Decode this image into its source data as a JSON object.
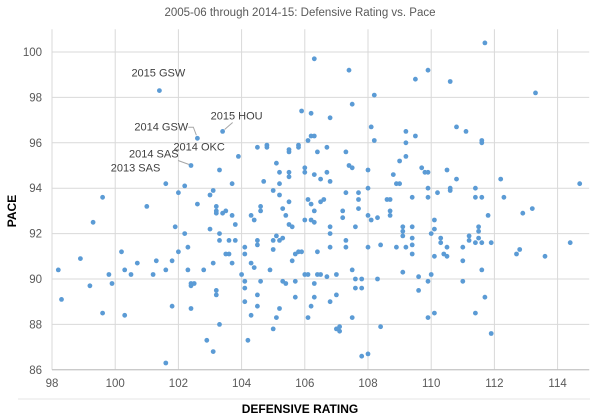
{
  "chart_data": {
    "type": "scatter",
    "title": "2005-06 through 2014-15: Defensive Rating vs. Pace",
    "xlabel": "DEFENSIVE RATING",
    "ylabel": "PACE",
    "xlim": [
      98,
      115
    ],
    "ylim": [
      86,
      101
    ],
    "xticks": [
      98,
      100,
      102,
      104,
      106,
      108,
      110,
      112,
      114
    ],
    "yticks": [
      86,
      88,
      90,
      92,
      94,
      96,
      98,
      100
    ],
    "grid": true,
    "legend": null,
    "point_color": "#5b9bd5",
    "annotations": [
      {
        "label": "2015 GSW",
        "x": 101.4,
        "y": 98.3
      },
      {
        "label": "2014 GSW",
        "x": 102.6,
        "y": 96.2
      },
      {
        "label": "2015 HOU",
        "x": 103.4,
        "y": 96.5
      },
      {
        "label": "2014 OKC",
        "x": 103.9,
        "y": 95.4
      },
      {
        "label": "2014 SAS",
        "x": 102.4,
        "y": 95.0
      },
      {
        "label": "2013 SAS",
        "x": 101.6,
        "y": 94.2
      }
    ],
    "points": [
      [
        98.2,
        90.4
      ],
      [
        98.3,
        89.1
      ],
      [
        98.9,
        90.9
      ],
      [
        99.2,
        89.7
      ],
      [
        99.3,
        92.5
      ],
      [
        99.6,
        93.6
      ],
      [
        99.6,
        88.5
      ],
      [
        99.8,
        90.2
      ],
      [
        99.9,
        89.8
      ],
      [
        100.2,
        91.2
      ],
      [
        100.3,
        90.4
      ],
      [
        100.3,
        88.4
      ],
      [
        100.5,
        90.2
      ],
      [
        100.7,
        90.7
      ],
      [
        101.0,
        93.2
      ],
      [
        101.2,
        90.2
      ],
      [
        101.3,
        90.8
      ],
      [
        101.4,
        98.3
      ],
      [
        101.6,
        94.2
      ],
      [
        101.6,
        90.4
      ],
      [
        101.6,
        86.3
      ],
      [
        101.8,
        90.8
      ],
      [
        101.8,
        88.8
      ],
      [
        101.9,
        92.3
      ],
      [
        102.0,
        93.8
      ],
      [
        102.0,
        91.2
      ],
      [
        102.2,
        94.1
      ],
      [
        102.2,
        92.0
      ],
      [
        102.3,
        91.4
      ],
      [
        102.3,
        90.4
      ],
      [
        102.4,
        95.0
      ],
      [
        102.4,
        89.8
      ],
      [
        102.4,
        89.7
      ],
      [
        102.5,
        89.8
      ],
      [
        102.4,
        88.7
      ],
      [
        102.6,
        96.2
      ],
      [
        102.6,
        93.3
      ],
      [
        102.8,
        90.4
      ],
      [
        102.9,
        87.3
      ],
      [
        103.0,
        93.7
      ],
      [
        103.1,
        93.9
      ],
      [
        103.0,
        92.2
      ],
      [
        103.1,
        90.7
      ],
      [
        103.1,
        86.8
      ],
      [
        103.2,
        93.2
      ],
      [
        103.2,
        93.0
      ],
      [
        103.2,
        92.9
      ],
      [
        103.2,
        89.5
      ],
      [
        103.2,
        89.3
      ],
      [
        103.3,
        92.0
      ],
      [
        103.3,
        91.7
      ],
      [
        103.3,
        88.0
      ],
      [
        103.3,
        94.8
      ],
      [
        103.4,
        96.5
      ],
      [
        103.4,
        92.9
      ],
      [
        103.5,
        93.0
      ],
      [
        103.5,
        91.1
      ],
      [
        103.6,
        91.1
      ],
      [
        103.6,
        91.7
      ],
      [
        103.7,
        94.2
      ],
      [
        103.7,
        92.8
      ],
      [
        103.7,
        90.7
      ],
      [
        103.8,
        92.4
      ],
      [
        103.8,
        91.7
      ],
      [
        103.9,
        95.4
      ],
      [
        104.0,
        90.2
      ],
      [
        104.1,
        91.4
      ],
      [
        104.1,
        91.1
      ],
      [
        104.1,
        89.9
      ],
      [
        104.1,
        89.6
      ],
      [
        104.1,
        89.0
      ],
      [
        104.2,
        87.3
      ],
      [
        104.3,
        92.8
      ],
      [
        104.3,
        90.7
      ],
      [
        104.3,
        88.4
      ],
      [
        104.4,
        92.6
      ],
      [
        104.4,
        90.5
      ],
      [
        104.5,
        95.8
      ],
      [
        104.5,
        91.7
      ],
      [
        104.5,
        91.5
      ],
      [
        104.5,
        89.3
      ],
      [
        104.5,
        88.8
      ],
      [
        104.6,
        93.2
      ],
      [
        104.6,
        93.0
      ],
      [
        104.6,
        89.9
      ],
      [
        104.7,
        94.3
      ],
      [
        104.8,
        95.9
      ],
      [
        104.8,
        95.8
      ],
      [
        104.9,
        90.4
      ],
      [
        105.0,
        93.9
      ],
      [
        105.0,
        91.7
      ],
      [
        105.0,
        91.3
      ],
      [
        105.0,
        87.8
      ],
      [
        105.1,
        95.1
      ],
      [
        105.1,
        91.9
      ],
      [
        105.1,
        88.3
      ],
      [
        105.2,
        94.7
      ],
      [
        105.2,
        94.2
      ],
      [
        105.2,
        93.7
      ],
      [
        105.2,
        91.7
      ],
      [
        105.2,
        88.7
      ],
      [
        105.3,
        93.1
      ],
      [
        105.3,
        91.8
      ],
      [
        105.3,
        89.9
      ],
      [
        105.4,
        92.8
      ],
      [
        105.4,
        89.8
      ],
      [
        105.5,
        95.7
      ],
      [
        105.5,
        95.6
      ],
      [
        105.5,
        94.7
      ],
      [
        105.5,
        94.5
      ],
      [
        105.5,
        93.4
      ],
      [
        105.5,
        92.4
      ],
      [
        105.6,
        92.3
      ],
      [
        105.6,
        90.8
      ],
      [
        105.7,
        91.1
      ],
      [
        105.7,
        89.9
      ],
      [
        105.7,
        89.2
      ],
      [
        105.8,
        95.9
      ],
      [
        105.8,
        95.8
      ],
      [
        105.8,
        91.2
      ],
      [
        105.9,
        97.4
      ],
      [
        105.9,
        91.2
      ],
      [
        106.0,
        94.9
      ],
      [
        106.0,
        94.7
      ],
      [
        106.0,
        92.6
      ],
      [
        106.0,
        90.2
      ],
      [
        106.1,
        96.1
      ],
      [
        106.1,
        93.5
      ],
      [
        106.1,
        90.2
      ],
      [
        106.1,
        88.3
      ],
      [
        106.2,
        97.3
      ],
      [
        106.2,
        96.3
      ],
      [
        106.2,
        93.3
      ],
      [
        106.2,
        92.6
      ],
      [
        106.2,
        88.8
      ],
      [
        106.3,
        99.7
      ],
      [
        106.3,
        96.3
      ],
      [
        106.3,
        94.6
      ],
      [
        106.3,
        93.0
      ],
      [
        106.3,
        92.5
      ],
      [
        106.3,
        89.8
      ],
      [
        106.3,
        89.2
      ],
      [
        106.4,
        95.6
      ],
      [
        106.4,
        91.2
      ],
      [
        106.4,
        90.2
      ],
      [
        106.5,
        94.4
      ],
      [
        106.5,
        93.4
      ],
      [
        106.5,
        90.2
      ],
      [
        106.6,
        93.5
      ],
      [
        106.7,
        95.8
      ],
      [
        106.7,
        94.7
      ],
      [
        106.7,
        90.1
      ],
      [
        106.8,
        97.1
      ],
      [
        106.8,
        94.3
      ],
      [
        106.8,
        92.3
      ],
      [
        106.8,
        92.0
      ],
      [
        106.8,
        91.4
      ],
      [
        106.8,
        89.0
      ],
      [
        107.0,
        90.2
      ],
      [
        107.0,
        89.3
      ],
      [
        107.0,
        87.8
      ],
      [
        107.1,
        87.7
      ],
      [
        107.1,
        87.9
      ],
      [
        107.2,
        93.0
      ],
      [
        107.2,
        92.7
      ],
      [
        107.3,
        95.6
      ],
      [
        107.3,
        93.8
      ],
      [
        107.3,
        91.7
      ],
      [
        107.3,
        91.4
      ],
      [
        107.4,
        99.2
      ],
      [
        107.4,
        95.0
      ],
      [
        107.5,
        97.7
      ],
      [
        107.5,
        94.9
      ],
      [
        107.5,
        90.4
      ],
      [
        107.5,
        88.3
      ],
      [
        107.6,
        92.3
      ],
      [
        107.6,
        90.0
      ],
      [
        107.6,
        89.6
      ],
      [
        107.7,
        93.8
      ],
      [
        107.7,
        93.5
      ],
      [
        107.7,
        93.1
      ],
      [
        107.8,
        90.0
      ],
      [
        107.8,
        89.6
      ],
      [
        107.8,
        86.6
      ],
      [
        108.0,
        94.8
      ],
      [
        108.0,
        94.0
      ],
      [
        108.0,
        92.8
      ],
      [
        108.0,
        91.4
      ],
      [
        108.0,
        86.7
      ],
      [
        108.1,
        96.7
      ],
      [
        108.1,
        92.6
      ],
      [
        108.2,
        98.1
      ],
      [
        108.2,
        96.1
      ],
      [
        108.3,
        92.7
      ],
      [
        108.3,
        90.0
      ],
      [
        108.4,
        91.5
      ],
      [
        108.4,
        87.9
      ],
      [
        108.6,
        93.5
      ],
      [
        108.7,
        93.5
      ],
      [
        108.7,
        93.0
      ],
      [
        108.7,
        92.8
      ],
      [
        108.8,
        94.6
      ],
      [
        108.9,
        94.2
      ],
      [
        108.9,
        91.4
      ],
      [
        109.0,
        95.2
      ],
      [
        109.0,
        94.2
      ],
      [
        109.1,
        92.3
      ],
      [
        109.1,
        92.1
      ],
      [
        109.1,
        91.9
      ],
      [
        109.1,
        90.3
      ],
      [
        109.2,
        96.5
      ],
      [
        109.2,
        96.0
      ],
      [
        109.2,
        95.4
      ],
      [
        109.2,
        91.4
      ],
      [
        109.4,
        93.6
      ],
      [
        109.4,
        92.3
      ],
      [
        109.4,
        91.8
      ],
      [
        109.4,
        91.5
      ],
      [
        109.4,
        91.1
      ],
      [
        109.5,
        98.8
      ],
      [
        109.5,
        96.3
      ],
      [
        109.6,
        90.1
      ],
      [
        109.6,
        89.5
      ],
      [
        109.7,
        94.9
      ],
      [
        109.8,
        94.7
      ],
      [
        109.9,
        99.2
      ],
      [
        109.9,
        94.7
      ],
      [
        109.9,
        94.0
      ],
      [
        109.9,
        93.6
      ],
      [
        109.9,
        89.9
      ],
      [
        109.9,
        88.3
      ],
      [
        110.0,
        92.0
      ],
      [
        110.0,
        90.2
      ],
      [
        110.1,
        92.6
      ],
      [
        110.1,
        92.2
      ],
      [
        110.1,
        91.0
      ],
      [
        110.1,
        88.5
      ],
      [
        110.2,
        93.8
      ],
      [
        110.3,
        91.8
      ],
      [
        110.3,
        91.6
      ],
      [
        110.4,
        91.1
      ],
      [
        110.5,
        94.8
      ],
      [
        110.5,
        91.4
      ],
      [
        110.5,
        91.0
      ],
      [
        110.6,
        98.7
      ],
      [
        110.6,
        94.0
      ],
      [
        110.6,
        93.9
      ],
      [
        110.8,
        96.7
      ],
      [
        110.8,
        94.4
      ],
      [
        111.0,
        91.4
      ],
      [
        111.0,
        90.8
      ],
      [
        111.0,
        89.9
      ],
      [
        111.1,
        96.5
      ],
      [
        111.2,
        91.9
      ],
      [
        111.2,
        91.7
      ],
      [
        111.4,
        94.0
      ],
      [
        111.4,
        93.6
      ],
      [
        111.4,
        91.6
      ],
      [
        111.4,
        88.5
      ],
      [
        111.5,
        92.3
      ],
      [
        111.5,
        92.1
      ],
      [
        111.5,
        91.8
      ],
      [
        111.6,
        96.1
      ],
      [
        111.6,
        96.0
      ],
      [
        111.6,
        93.6
      ],
      [
        111.6,
        91.6
      ],
      [
        111.6,
        90.4
      ],
      [
        111.7,
        100.4
      ],
      [
        111.7,
        89.2
      ],
      [
        111.8,
        92.8
      ],
      [
        111.9,
        91.6
      ],
      [
        111.9,
        87.6
      ],
      [
        112.2,
        94.4
      ],
      [
        112.3,
        93.6
      ],
      [
        112.7,
        91.1
      ],
      [
        112.8,
        91.3
      ],
      [
        112.9,
        92.9
      ],
      [
        113.2,
        93.1
      ],
      [
        113.3,
        98.2
      ],
      [
        113.6,
        91.0
      ],
      [
        114.4,
        91.6
      ],
      [
        114.7,
        94.2
      ]
    ]
  }
}
